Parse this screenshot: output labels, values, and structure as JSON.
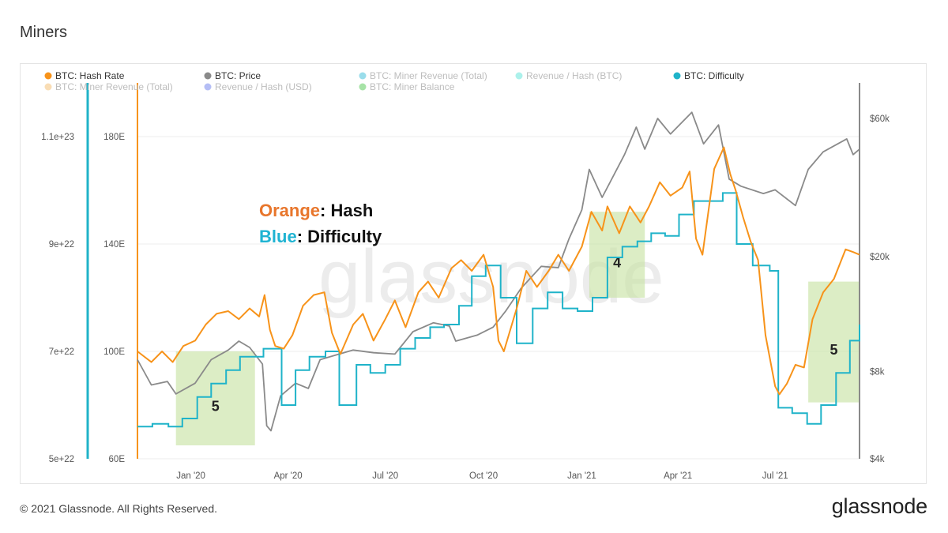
{
  "page": {
    "title": "Miners",
    "copyright": "© 2021 Glassnode. All Rights Reserved.",
    "logo": "glassnode",
    "watermark": "glassnode"
  },
  "annotations": {
    "orange_word": "Orange",
    "orange_rest": ": Hash",
    "blue_word": "Blue",
    "blue_rest": ": Difficulty",
    "orange_color": "#e8762c",
    "blue_color": "#1fb3d2"
  },
  "colors": {
    "hash": "#f7931a",
    "price": "#8a8a8a",
    "difficulty": "#1fb3c9",
    "box": "#c9e3a6",
    "watermark": "#ececec"
  },
  "chart_data": {
    "type": "line",
    "title": "Miners",
    "legend": [
      {
        "label": "BTC: Hash Rate",
        "color": "#f7931a",
        "active": true
      },
      {
        "label": "BTC: Price",
        "color": "#8a8a8a",
        "active": true
      },
      {
        "label": "BTC: Miner Revenue (Total)",
        "color": "#1fb3d2",
        "active": false
      },
      {
        "label": "Revenue / Hash (BTC)",
        "color": "#47e0d2",
        "active": false
      },
      {
        "label": "BTC: Difficulty",
        "color": "#1fb3c9",
        "active": true
      },
      {
        "label": "BTC: Miner Revenue (Total)",
        "color": "#f2b45a",
        "active": false
      },
      {
        "label": "Revenue / Hash (USD)",
        "color": "#5b6ee8",
        "active": false
      },
      {
        "label": "BTC: Miner Balance",
        "color": "#3cc23c",
        "active": false
      }
    ],
    "legend_placement": "top",
    "x_ticks": [
      "Jan '20",
      "Apr '20",
      "Jul '20",
      "Oct '20",
      "Jan '21",
      "Apr '21",
      "Jul '21"
    ],
    "x_tick_dates": [
      "2020-01-01",
      "2020-04-01",
      "2020-07-01",
      "2020-10-01",
      "2021-01-01",
      "2021-04-01",
      "2021-07-01"
    ],
    "x_range": [
      "2019-11-12",
      "2021-09-18"
    ],
    "axes": {
      "difficulty": {
        "ticks": [
          "1.1e+23",
          "9e+22",
          "7e+22",
          "5e+22"
        ],
        "values": [
          1.1e+23,
          9e+22,
          7e+22,
          5e+22
        ],
        "ylim": [
          5e+22,
          1.1e+23
        ]
      },
      "hash": {
        "ticks": [
          "180E",
          "140E",
          "100E",
          "60E"
        ],
        "values": [
          180,
          140,
          100,
          60
        ],
        "ylim": [
          60,
          180
        ]
      },
      "price": {
        "ticks": [
          "$60k",
          "$20k",
          "$8k",
          "$4k"
        ],
        "values": [
          60000,
          20000,
          8000,
          4000
        ],
        "scale": "log",
        "ylim": [
          4000,
          60000
        ]
      }
    },
    "series": [
      {
        "name": "BTC: Hash Rate",
        "axis": "hash",
        "points": [
          [
            "2019-11-12",
            100
          ],
          [
            "2019-11-25",
            96
          ],
          [
            "2019-12-05",
            100
          ],
          [
            "2019-12-15",
            96
          ],
          [
            "2019-12-25",
            102
          ],
          [
            "2020-01-05",
            104
          ],
          [
            "2020-01-15",
            110
          ],
          [
            "2020-01-25",
            114
          ],
          [
            "2020-02-05",
            115
          ],
          [
            "2020-02-15",
            112
          ],
          [
            "2020-02-25",
            116
          ],
          [
            "2020-03-05",
            113
          ],
          [
            "2020-03-10",
            121
          ],
          [
            "2020-03-15",
            108
          ],
          [
            "2020-03-20",
            102
          ],
          [
            "2020-03-28",
            101
          ],
          [
            "2020-04-05",
            106
          ],
          [
            "2020-04-15",
            117
          ],
          [
            "2020-04-25",
            121
          ],
          [
            "2020-05-05",
            122
          ],
          [
            "2020-05-12",
            107
          ],
          [
            "2020-05-20",
            99
          ],
          [
            "2020-06-01",
            110
          ],
          [
            "2020-06-10",
            114
          ],
          [
            "2020-06-20",
            104
          ],
          [
            "2020-07-01",
            112
          ],
          [
            "2020-07-10",
            119
          ],
          [
            "2020-07-20",
            109
          ],
          [
            "2020-08-01",
            122
          ],
          [
            "2020-08-10",
            126
          ],
          [
            "2020-08-20",
            120
          ],
          [
            "2020-09-01",
            131
          ],
          [
            "2020-09-10",
            134
          ],
          [
            "2020-09-20",
            130
          ],
          [
            "2020-10-01",
            136
          ],
          [
            "2020-10-10",
            124
          ],
          [
            "2020-10-15",
            104
          ],
          [
            "2020-10-20",
            100
          ],
          [
            "2020-11-01",
            116
          ],
          [
            "2020-11-10",
            130
          ],
          [
            "2020-11-20",
            124
          ],
          [
            "2020-12-01",
            130
          ],
          [
            "2020-12-10",
            136
          ],
          [
            "2020-12-20",
            130
          ],
          [
            "2021-01-01",
            139
          ],
          [
            "2021-01-10",
            152
          ],
          [
            "2021-01-20",
            145
          ],
          [
            "2021-01-25",
            154
          ],
          [
            "2021-02-05",
            144
          ],
          [
            "2021-02-15",
            154
          ],
          [
            "2021-02-25",
            148
          ],
          [
            "2021-03-05",
            154
          ],
          [
            "2021-03-15",
            163
          ],
          [
            "2021-03-25",
            158
          ],
          [
            "2021-04-05",
            161
          ],
          [
            "2021-04-12",
            167
          ],
          [
            "2021-04-18",
            142
          ],
          [
            "2021-04-24",
            136
          ],
          [
            "2021-05-05",
            168
          ],
          [
            "2021-05-14",
            176
          ],
          [
            "2021-05-20",
            166
          ],
          [
            "2021-05-25",
            160
          ],
          [
            "2021-06-01",
            150
          ],
          [
            "2021-06-08",
            141
          ],
          [
            "2021-06-15",
            134
          ],
          [
            "2021-06-22",
            106
          ],
          [
            "2021-07-01",
            87
          ],
          [
            "2021-07-05",
            84
          ],
          [
            "2021-07-12",
            88
          ],
          [
            "2021-07-20",
            95
          ],
          [
            "2021-07-28",
            94
          ],
          [
            "2021-08-05",
            112
          ],
          [
            "2021-08-15",
            122
          ],
          [
            "2021-08-25",
            127
          ],
          [
            "2021-09-05",
            138
          ],
          [
            "2021-09-12",
            137
          ],
          [
            "2021-09-18",
            136
          ]
        ]
      },
      {
        "name": "BTC: Price",
        "axis": "price",
        "points": [
          [
            "2019-11-12",
            8800
          ],
          [
            "2019-11-25",
            7200
          ],
          [
            "2019-12-10",
            7400
          ],
          [
            "2019-12-18",
            6700
          ],
          [
            "2020-01-05",
            7300
          ],
          [
            "2020-01-20",
            8800
          ],
          [
            "2020-02-05",
            9500
          ],
          [
            "2020-02-15",
            10200
          ],
          [
            "2020-02-25",
            9700
          ],
          [
            "2020-03-08",
            8500
          ],
          [
            "2020-03-12",
            5200
          ],
          [
            "2020-03-16",
            5000
          ],
          [
            "2020-03-25",
            6600
          ],
          [
            "2020-04-08",
            7300
          ],
          [
            "2020-04-20",
            7000
          ],
          [
            "2020-05-01",
            8800
          ],
          [
            "2020-05-10",
            9000
          ],
          [
            "2020-06-01",
            9500
          ],
          [
            "2020-06-20",
            9300
          ],
          [
            "2020-07-10",
            9200
          ],
          [
            "2020-07-27",
            11000
          ],
          [
            "2020-08-15",
            11800
          ],
          [
            "2020-08-30",
            11500
          ],
          [
            "2020-09-05",
            10200
          ],
          [
            "2020-09-25",
            10700
          ],
          [
            "2020-10-10",
            11400
          ],
          [
            "2020-10-22",
            13000
          ],
          [
            "2020-11-05",
            15500
          ],
          [
            "2020-11-24",
            18500
          ],
          [
            "2020-12-10",
            18300
          ],
          [
            "2020-12-20",
            23000
          ],
          [
            "2021-01-01",
            29000
          ],
          [
            "2021-01-08",
            40000
          ],
          [
            "2021-01-20",
            32000
          ],
          [
            "2021-02-10",
            45000
          ],
          [
            "2021-02-21",
            56000
          ],
          [
            "2021-03-01",
            47000
          ],
          [
            "2021-03-13",
            60000
          ],
          [
            "2021-03-25",
            53000
          ],
          [
            "2021-04-14",
            63000
          ],
          [
            "2021-04-25",
            49000
          ],
          [
            "2021-05-09",
            57000
          ],
          [
            "2021-05-19",
            37000
          ],
          [
            "2021-05-30",
            35000
          ],
          [
            "2021-06-20",
            33000
          ],
          [
            "2021-07-01",
            34000
          ],
          [
            "2021-07-20",
            30000
          ],
          [
            "2021-08-01",
            40000
          ],
          [
            "2021-08-15",
            46000
          ],
          [
            "2021-09-06",
            51000
          ],
          [
            "2021-09-12",
            45000
          ],
          [
            "2021-09-18",
            47000
          ]
        ]
      },
      {
        "name": "BTC: Difficulty",
        "axis": "difficulty",
        "steps": [
          [
            "2019-11-12",
            5.6e+22
          ],
          [
            "2019-11-26",
            5.65e+22
          ],
          [
            "2019-12-11",
            5.6e+22
          ],
          [
            "2019-12-24",
            5.75e+22
          ],
          [
            "2020-01-07",
            6.15e+22
          ],
          [
            "2020-01-20",
            6.4e+22
          ],
          [
            "2020-02-03",
            6.65e+22
          ],
          [
            "2020-02-16",
            6.9e+22
          ],
          [
            "2020-03-09",
            7.05e+22
          ],
          [
            "2020-03-26",
            6e+22
          ],
          [
            "2020-04-08",
            6.65e+22
          ],
          [
            "2020-04-21",
            6.9e+22
          ],
          [
            "2020-05-06",
            7e+22
          ],
          [
            "2020-05-19",
            6e+22
          ],
          [
            "2020-06-04",
            6.75e+22
          ],
          [
            "2020-06-17",
            6.6e+22
          ],
          [
            "2020-07-01",
            6.75e+22
          ],
          [
            "2020-07-15",
            7.05e+22
          ],
          [
            "2020-07-29",
            7.25e+22
          ],
          [
            "2020-08-12",
            7.45e+22
          ],
          [
            "2020-08-25",
            7.5e+22
          ],
          [
            "2020-09-08",
            7.85e+22
          ],
          [
            "2020-09-20",
            8.4e+22
          ],
          [
            "2020-10-03",
            8.6e+22
          ],
          [
            "2020-10-17",
            8e+22
          ],
          [
            "2020-11-01",
            7.15e+22
          ],
          [
            "2020-11-16",
            7.8e+22
          ],
          [
            "2020-11-30",
            8.1e+22
          ],
          [
            "2020-12-14",
            7.8e+22
          ],
          [
            "2020-12-28",
            7.75e+22
          ],
          [
            "2021-01-11",
            8e+22
          ],
          [
            "2021-01-25",
            8.75e+22
          ],
          [
            "2021-02-08",
            8.95e+22
          ],
          [
            "2021-02-22",
            9.05e+22
          ],
          [
            "2021-03-07",
            9.2e+22
          ],
          [
            "2021-03-20",
            9.15e+22
          ],
          [
            "2021-04-02",
            9.55e+22
          ],
          [
            "2021-04-16",
            9.8e+22
          ],
          [
            "2021-04-30",
            9.8e+22
          ],
          [
            "2021-05-13",
            9.95e+22
          ],
          [
            "2021-05-26",
            9e+22
          ],
          [
            "2021-06-10",
            8.6e+22
          ],
          [
            "2021-06-26",
            8.5e+22
          ],
          [
            "2021-07-04",
            5.95e+22
          ],
          [
            "2021-07-17",
            5.85e+22
          ],
          [
            "2021-07-31",
            5.65e+22
          ],
          [
            "2021-08-13",
            6e+22
          ],
          [
            "2021-08-27",
            6.6e+22
          ],
          [
            "2021-09-09",
            7.2e+22
          ],
          [
            "2021-09-18",
            7.5e+22
          ]
        ]
      }
    ],
    "highlight_boxes": [
      {
        "label": "5",
        "start": "2019-12-18",
        "end": "2020-03-01",
        "hash_range": [
          65,
          100
        ]
      },
      {
        "label": "4",
        "start": "2021-01-08",
        "end": "2021-03-01",
        "hash_range": [
          120,
          152
        ]
      },
      {
        "label": "5",
        "start": "2021-08-01",
        "end": "2021-09-18",
        "hash_range": [
          81,
          126
        ]
      }
    ]
  }
}
